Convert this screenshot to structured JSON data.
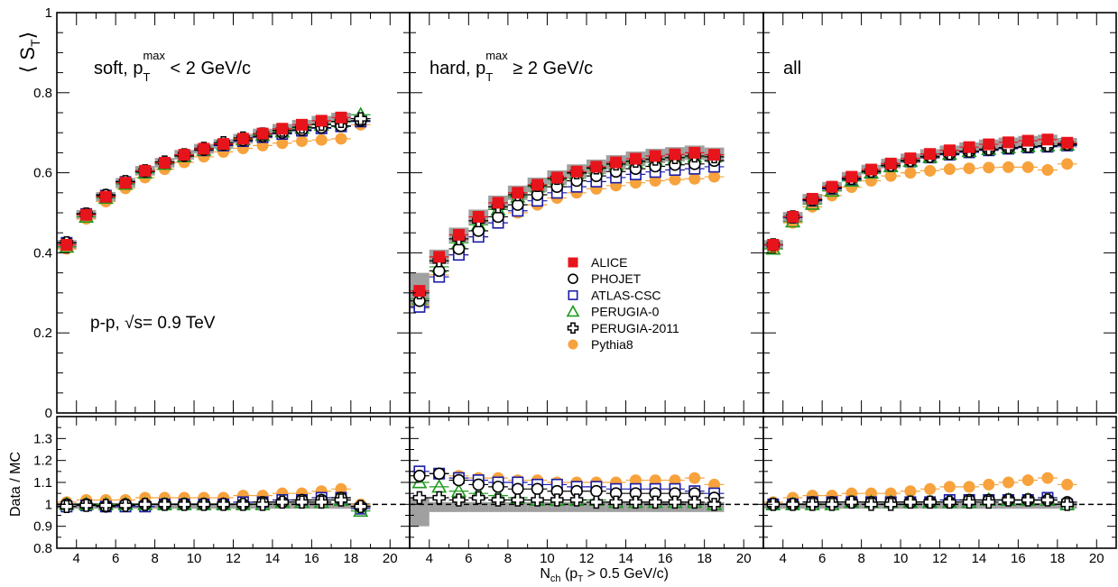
{
  "chart_data": {
    "type": "scatter",
    "ylabel_parts": {
      "open": "⟨ S",
      "sub": "T",
      "close": "⟩"
    },
    "ratio_ylabel": "Data / MC",
    "xlabel_parts": {
      "n": "N",
      "ch": "ch",
      "mid": " (p",
      "t": "T",
      "rest": " > 0.5 GeV/c)"
    },
    "xlim": [
      3,
      21
    ],
    "ylim": [
      0,
      1
    ],
    "ratio_ylim": [
      0.8,
      1.4
    ],
    "x_ticks": [
      "4",
      "6",
      "8",
      "10",
      "12",
      "14",
      "16",
      "18",
      "20"
    ],
    "y_ticks": [
      "0",
      "0.2",
      "0.4",
      "0.6",
      "0.8",
      "1"
    ],
    "ratio_y_ticks": [
      "0.8",
      "0.9",
      "1",
      "1.1",
      "1.2",
      "1.3"
    ],
    "energy_label": {
      "pre": "p-p, ",
      "root": "√",
      "rest": "s= 0.9 TeV"
    },
    "legend_placement": "center of middle panel",
    "x": [
      3.5,
      4.5,
      5.5,
      6.5,
      7.5,
      8.5,
      9.5,
      10.5,
      11.5,
      12.5,
      13.5,
      14.5,
      15.5,
      16.5,
      17.5,
      18.5
    ],
    "series_styles": [
      {
        "name": "ALICE",
        "marker": "filled-square",
        "color": "#e8141b"
      },
      {
        "name": "PHOJET",
        "marker": "open-circle",
        "color": "#000000"
      },
      {
        "name": "ATLAS-CSC",
        "marker": "open-square",
        "color": "#1a1aa6"
      },
      {
        "name": "PERUGIA-0",
        "marker": "open-triangle",
        "color": "#1f9a1f"
      },
      {
        "name": "PERUGIA-2011",
        "marker": "open-cross",
        "color": "#000000"
      },
      {
        "name": "Pythia8",
        "marker": "filled-circle",
        "color": "#f7a23c"
      }
    ],
    "panels": [
      {
        "label": {
          "pre": "soft, p",
          "sub": "T",
          "sup": "max",
          "post": " < 2 GeV/c"
        },
        "series": [
          {
            "name": "ALICE",
            "values": [
              0.42,
              0.495,
              0.54,
              0.575,
              0.605,
              0.625,
              0.645,
              0.66,
              0.672,
              0.685,
              0.698,
              0.71,
              0.72,
              0.73,
              0.738,
              null
            ]
          },
          {
            "name": "PHOJET",
            "values": [
              0.425,
              0.498,
              0.545,
              0.578,
              0.603,
              0.625,
              0.642,
              0.657,
              0.67,
              0.681,
              0.691,
              0.7,
              0.707,
              0.713,
              0.717,
              0.73
            ]
          },
          {
            "name": "ATLAS-CSC",
            "values": [
              0.425,
              0.497,
              0.543,
              0.577,
              0.603,
              0.623,
              0.641,
              0.656,
              0.668,
              0.679,
              0.689,
              0.697,
              0.705,
              0.711,
              0.716,
              0.728
            ]
          },
          {
            "name": "PERUGIA-0",
            "values": [
              0.415,
              0.49,
              0.537,
              0.572,
              0.6,
              0.622,
              0.641,
              0.657,
              0.671,
              0.683,
              0.694,
              0.703,
              0.712,
              0.72,
              0.727,
              0.745
            ]
          },
          {
            "name": "PERUGIA-2011",
            "values": [
              0.425,
              0.497,
              0.543,
              0.578,
              0.605,
              0.627,
              0.645,
              0.661,
              0.675,
              0.687,
              0.697,
              0.706,
              0.714,
              0.721,
              0.728,
              0.735
            ]
          },
          {
            "name": "Pythia8",
            "values": [
              0.41,
              0.485,
              0.528,
              0.561,
              0.588,
              0.609,
              0.626,
              0.64,
              0.652,
              0.661,
              0.668,
              0.674,
              0.679,
              0.682,
              0.685,
              0.72
            ]
          }
        ],
        "ratio_series": [
          {
            "name": "PHOJET",
            "values": [
              1.0,
              1.0,
              0.99,
              1.0,
              1.0,
              1.0,
              1.0,
              1.0,
              1.0,
              1.0,
              1.01,
              1.01,
              1.02,
              1.02,
              1.03,
              0.99
            ]
          },
          {
            "name": "ATLAS-CSC",
            "values": [
              0.99,
              0.995,
              0.99,
              0.99,
              0.99,
              1.0,
              1.0,
              1.0,
              1.0,
              1.01,
              1.01,
              1.02,
              1.02,
              1.03,
              1.03,
              0.98
            ]
          },
          {
            "name": "PERUGIA-0",
            "values": [
              1.0,
              1.0,
              1.0,
              1.0,
              1.0,
              1.0,
              1.0,
              1.0,
              1.0,
              1.0,
              1.0,
              1.01,
              1.01,
              1.01,
              1.02,
              0.97
            ]
          },
          {
            "name": "PERUGIA-2011",
            "values": [
              0.99,
              0.995,
              0.995,
              0.995,
              1.0,
              1.0,
              1.0,
              1.0,
              1.0,
              1.0,
              1.0,
              1.01,
              1.01,
              1.01,
              1.02,
              0.99
            ]
          },
          {
            "name": "Pythia8",
            "values": [
              1.01,
              1.02,
              1.02,
              1.02,
              1.03,
              1.03,
              1.03,
              1.03,
              1.03,
              1.04,
              1.04,
              1.05,
              1.05,
              1.06,
              1.07,
              1.0
            ]
          }
        ]
      },
      {
        "label": {
          "pre": "hard, p",
          "sub": "T",
          "sup": "max",
          "post": " ≥ 2 GeV/c"
        },
        "series": [
          {
            "name": "ALICE",
            "values": [
              0.305,
              0.39,
              0.445,
              0.49,
              0.525,
              0.55,
              0.57,
              0.588,
              0.603,
              0.615,
              0.626,
              0.635,
              0.642,
              0.646,
              0.65,
              0.645
            ]
          },
          {
            "name": "PHOJET",
            "values": [
              0.28,
              0.355,
              0.41,
              0.455,
              0.49,
              0.52,
              0.545,
              0.565,
              0.58,
              0.592,
              0.603,
              0.61,
              0.616,
              0.62,
              0.622,
              0.63
            ]
          },
          {
            "name": "ATLAS-CSC",
            "values": [
              0.265,
              0.34,
              0.395,
              0.44,
              0.475,
              0.505,
              0.53,
              0.55,
              0.565,
              0.578,
              0.588,
              0.596,
              0.602,
              0.607,
              0.61,
              0.615
            ]
          },
          {
            "name": "PERUGIA-0",
            "values": [
              0.285,
              0.365,
              0.425,
              0.47,
              0.508,
              0.54,
              0.565,
              0.583,
              0.598,
              0.61,
              0.62,
              0.627,
              0.633,
              0.637,
              0.64,
              0.64
            ]
          },
          {
            "name": "PERUGIA-2011",
            "values": [
              0.3,
              0.38,
              0.435,
              0.48,
              0.515,
              0.545,
              0.568,
              0.586,
              0.6,
              0.612,
              0.622,
              0.629,
              0.634,
              0.638,
              0.642,
              0.64
            ]
          },
          {
            "name": "Pythia8",
            "values": [
              0.27,
              0.345,
              0.395,
              0.44,
              0.475,
              0.5,
              0.52,
              0.537,
              0.55,
              0.56,
              0.568,
              0.575,
              0.58,
              0.583,
              0.585,
              0.59
            ]
          }
        ],
        "ratio_series": [
          {
            "name": "PHOJET",
            "values": [
              1.13,
              1.14,
              1.11,
              1.09,
              1.08,
              1.07,
              1.07,
              1.06,
              1.06,
              1.06,
              1.05,
              1.05,
              1.05,
              1.05,
              1.05,
              1.03
            ]
          },
          {
            "name": "ATLAS-CSC",
            "values": [
              1.15,
              1.14,
              1.12,
              1.11,
              1.1,
              1.1,
              1.09,
              1.09,
              1.08,
              1.08,
              1.07,
              1.07,
              1.07,
              1.07,
              1.06,
              1.05
            ]
          },
          {
            "name": "PERUGIA-0",
            "values": [
              1.1,
              1.08,
              1.06,
              1.05,
              1.04,
              1.03,
              1.02,
              1.02,
              1.02,
              1.02,
              1.01,
              1.01,
              1.01,
              1.01,
              1.01,
              1.0
            ]
          },
          {
            "name": "PERUGIA-2011",
            "values": [
              1.03,
              1.03,
              1.02,
              1.03,
              1.02,
              1.02,
              1.02,
              1.02,
              1.02,
              1.01,
              1.01,
              1.01,
              1.01,
              1.01,
              1.01,
              1.0
            ]
          },
          {
            "name": "Pythia8",
            "values": [
              1.13,
              1.14,
              1.13,
              1.12,
              1.12,
              1.11,
              1.11,
              1.1,
              1.1,
              1.1,
              1.1,
              1.11,
              1.11,
              1.11,
              1.12,
              1.09
            ]
          }
        ]
      },
      {
        "label": {
          "pre": "all",
          "sub": "",
          "sup": "",
          "post": ""
        },
        "series": [
          {
            "name": "ALICE",
            "values": [
              0.42,
              0.49,
              0.535,
              0.565,
              0.59,
              0.608,
              0.623,
              0.636,
              0.647,
              0.656,
              0.664,
              0.671,
              0.676,
              0.68,
              0.683,
              0.675
            ]
          },
          {
            "name": "PHOJET",
            "values": [
              0.42,
              0.49,
              0.532,
              0.562,
              0.585,
              0.603,
              0.618,
              0.63,
              0.64,
              0.647,
              0.653,
              0.658,
              0.662,
              0.665,
              0.667,
              0.67
            ]
          },
          {
            "name": "ATLAS-CSC",
            "values": [
              0.42,
              0.488,
              0.53,
              0.56,
              0.583,
              0.601,
              0.616,
              0.628,
              0.638,
              0.645,
              0.651,
              0.656,
              0.66,
              0.663,
              0.665,
              0.668
            ]
          },
          {
            "name": "PERUGIA-0",
            "values": [
              0.41,
              0.478,
              0.522,
              0.555,
              0.58,
              0.6,
              0.616,
              0.629,
              0.639,
              0.647,
              0.654,
              0.659,
              0.663,
              0.666,
              0.668,
              0.67
            ]
          },
          {
            "name": "PERUGIA-2011",
            "values": [
              0.42,
              0.49,
              0.533,
              0.563,
              0.586,
              0.604,
              0.619,
              0.631,
              0.641,
              0.648,
              0.654,
              0.659,
              0.663,
              0.666,
              0.668,
              0.672
            ]
          },
          {
            "name": "Pythia8",
            "values": [
              0.41,
              0.475,
              0.515,
              0.543,
              0.564,
              0.58,
              0.592,
              0.6,
              0.605,
              0.609,
              0.611,
              0.613,
              0.614,
              0.614,
              0.607,
              0.622
            ]
          }
        ],
        "ratio_series": [
          {
            "name": "PHOJET",
            "values": [
              1.0,
              1.0,
              1.01,
              1.01,
              1.01,
              1.01,
              1.01,
              1.01,
              1.01,
              1.01,
              1.02,
              1.02,
              1.02,
              1.02,
              1.02,
              1.01
            ]
          },
          {
            "name": "ATLAS-CSC",
            "values": [
              1.0,
              1.0,
              1.01,
              1.01,
              1.01,
              1.01,
              1.01,
              1.01,
              1.01,
              1.02,
              1.02,
              1.02,
              1.02,
              1.02,
              1.03,
              1.0
            ]
          },
          {
            "name": "PERUGIA-0",
            "values": [
              1.0,
              1.0,
              1.0,
              1.0,
              1.01,
              1.01,
              1.01,
              1.01,
              1.01,
              1.01,
              1.01,
              1.02,
              1.02,
              1.02,
              1.02,
              1.0
            ]
          },
          {
            "name": "PERUGIA-2011",
            "values": [
              1.0,
              1.0,
              1.0,
              1.0,
              1.01,
              1.0,
              1.0,
              1.01,
              1.01,
              1.01,
              1.01,
              1.01,
              1.02,
              1.02,
              1.02,
              1.0
            ]
          },
          {
            "name": "Pythia8",
            "values": [
              1.01,
              1.03,
              1.04,
              1.04,
              1.05,
              1.05,
              1.05,
              1.06,
              1.07,
              1.08,
              1.08,
              1.09,
              1.1,
              1.11,
              1.12,
              1.09
            ]
          }
        ]
      }
    ]
  }
}
